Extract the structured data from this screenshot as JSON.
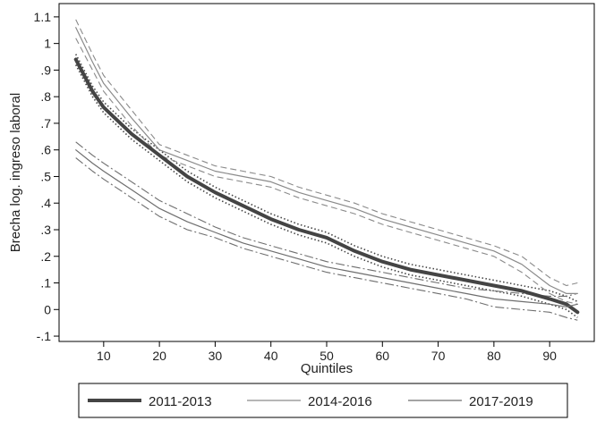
{
  "chart_data": {
    "type": "line",
    "title": "",
    "xlabel": "Quintiles",
    "ylabel": "Brecha log. ingreso laboral",
    "xlim": [
      2,
      98
    ],
    "ylim": [
      -0.12,
      1.15
    ],
    "grid": false,
    "legend_position": "bottom",
    "x_ticks": [
      10,
      20,
      30,
      40,
      50,
      60,
      70,
      80,
      90
    ],
    "x_tick_labels": [
      "10",
      "20",
      "30",
      "40",
      "50",
      "60",
      "70",
      "80",
      "90"
    ],
    "y_ticks": [
      -0.1,
      0,
      0.1,
      0.2,
      0.3,
      0.4,
      0.5,
      0.6,
      0.7,
      0.8,
      0.9,
      1,
      1.1
    ],
    "y_tick_labels": [
      "-.1",
      "0",
      ".1",
      ".2",
      ".3",
      ".4",
      ".5",
      ".6",
      ".7",
      ".8",
      ".9",
      "1",
      "1.1"
    ],
    "x": [
      5,
      8,
      10,
      15,
      20,
      25,
      30,
      35,
      40,
      45,
      50,
      55,
      60,
      65,
      70,
      75,
      80,
      85,
      90,
      93,
      95
    ],
    "series": [
      {
        "name": "2011-2013",
        "color": "#444444",
        "values": [
          0.94,
          0.82,
          0.76,
          0.66,
          0.58,
          0.5,
          0.44,
          0.39,
          0.34,
          0.3,
          0.27,
          0.22,
          0.18,
          0.15,
          0.13,
          0.11,
          0.09,
          0.07,
          0.04,
          0.02,
          -0.01
        ],
        "ci_upper": [
          0.96,
          0.84,
          0.78,
          0.68,
          0.6,
          0.52,
          0.46,
          0.41,
          0.36,
          0.32,
          0.29,
          0.24,
          0.2,
          0.17,
          0.15,
          0.13,
          0.11,
          0.09,
          0.07,
          0.05,
          0.03
        ],
        "ci_lower": [
          0.92,
          0.8,
          0.74,
          0.64,
          0.56,
          0.48,
          0.42,
          0.37,
          0.32,
          0.28,
          0.25,
          0.2,
          0.16,
          0.13,
          0.11,
          0.09,
          0.07,
          0.05,
          0.02,
          0.0,
          -0.03
        ]
      },
      {
        "name": "2014-2016",
        "color": "#8a8a8a",
        "values": [
          1.06,
          0.93,
          0.85,
          0.72,
          0.6,
          0.56,
          0.52,
          0.5,
          0.48,
          0.44,
          0.41,
          0.38,
          0.34,
          0.31,
          0.28,
          0.25,
          0.22,
          0.17,
          0.09,
          0.06,
          0.06
        ],
        "ci_upper": [
          1.09,
          0.96,
          0.88,
          0.75,
          0.62,
          0.58,
          0.54,
          0.52,
          0.5,
          0.46,
          0.43,
          0.4,
          0.36,
          0.33,
          0.3,
          0.27,
          0.24,
          0.2,
          0.12,
          0.09,
          0.1
        ],
        "ci_lower": [
          1.02,
          0.9,
          0.82,
          0.69,
          0.58,
          0.54,
          0.5,
          0.48,
          0.46,
          0.42,
          0.39,
          0.36,
          0.32,
          0.29,
          0.26,
          0.23,
          0.2,
          0.14,
          0.06,
          0.03,
          0.02
        ]
      },
      {
        "name": "2017-2019",
        "color": "#6e6e6e",
        "values": [
          0.6,
          0.55,
          0.52,
          0.45,
          0.38,
          0.33,
          0.29,
          0.25,
          0.22,
          0.19,
          0.16,
          0.14,
          0.12,
          0.1,
          0.08,
          0.06,
          0.04,
          0.03,
          0.02,
          0.01,
          0.02
        ],
        "ci_upper": [
          0.63,
          0.58,
          0.55,
          0.48,
          0.41,
          0.36,
          0.31,
          0.27,
          0.24,
          0.21,
          0.18,
          0.16,
          0.14,
          0.12,
          0.1,
          0.08,
          0.07,
          0.06,
          0.05,
          0.05,
          0.06
        ],
        "ci_lower": [
          0.57,
          0.52,
          0.49,
          0.42,
          0.35,
          0.3,
          0.27,
          0.23,
          0.2,
          0.17,
          0.14,
          0.12,
          0.1,
          0.08,
          0.06,
          0.04,
          0.01,
          0.0,
          -0.01,
          -0.03,
          -0.04
        ]
      }
    ]
  }
}
